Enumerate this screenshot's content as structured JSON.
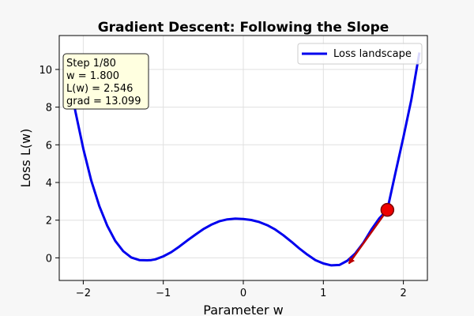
{
  "chart_data": {
    "type": "line",
    "title": "Gradient Descent: Following the Slope",
    "xlabel": "Parameter w",
    "ylabel": "Loss L(w)",
    "xlim": [
      -2.3,
      2.3
    ],
    "ylim": [
      -1.2,
      11.8
    ],
    "xticks": [
      -2,
      -1,
      0,
      1,
      2
    ],
    "yticks": [
      0,
      2,
      4,
      6,
      8,
      10
    ],
    "grid": true,
    "legend_position": "top-right",
    "series": [
      {
        "name": "Loss landscape",
        "color": "#0000ee",
        "x": [
          -2.2,
          -2.1,
          -2.0,
          -1.9,
          -1.8,
          -1.7,
          -1.6,
          -1.5,
          -1.4,
          -1.3,
          -1.2,
          -1.15,
          -1.1,
          -1.0,
          -0.9,
          -0.8,
          -0.7,
          -0.6,
          -0.5,
          -0.4,
          -0.3,
          -0.2,
          -0.1,
          0.0,
          0.1,
          0.2,
          0.3,
          0.4,
          0.5,
          0.6,
          0.7,
          0.8,
          0.9,
          1.0,
          1.1,
          1.2,
          1.3,
          1.4,
          1.5,
          1.6,
          1.7,
          1.8,
          1.9,
          2.0,
          2.1,
          2.2
        ],
        "values": [
          10.1,
          7.8,
          5.8,
          4.1,
          2.75,
          1.7,
          0.9,
          0.35,
          0.02,
          -0.12,
          -0.13,
          -0.12,
          -0.08,
          0.08,
          0.3,
          0.6,
          0.92,
          1.23,
          1.52,
          1.76,
          1.94,
          2.04,
          2.08,
          2.06,
          2.01,
          1.9,
          1.73,
          1.5,
          1.2,
          0.86,
          0.5,
          0.17,
          -0.12,
          -0.3,
          -0.4,
          -0.38,
          -0.15,
          0.24,
          0.8,
          1.5,
          2.1,
          2.55,
          4.5,
          6.4,
          8.4,
          10.9
        ]
      }
    ],
    "current_point": {
      "x": 1.8,
      "y": 2.546
    },
    "gradient_arrow": {
      "from": [
        1.8,
        2.546
      ],
      "to": [
        1.32,
        -0.3
      ],
      "color": "#bb0000"
    },
    "info_box": {
      "lines": [
        "Step 1/80",
        "w = 1.800",
        "L(w) = 2.546",
        "grad = 13.099"
      ]
    }
  }
}
